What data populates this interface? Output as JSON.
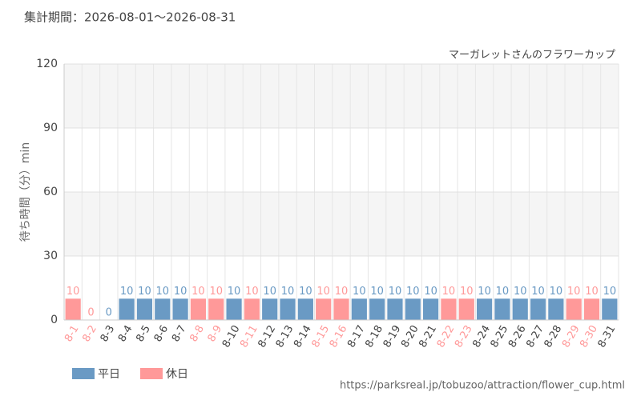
{
  "chart_data": {
    "type": "bar",
    "title": "集計期間：2026-08-01～2026-08-31",
    "subtitle": "マーガレットさんのフラワーカップ",
    "y_label": "待ち時間（分）min",
    "footer": "https://parksreal.jp/tobuzoo/attraction/flower_cup.html",
    "categories": [
      "8-1",
      "8-2",
      "8-3",
      "8-4",
      "8-5",
      "8-6",
      "8-7",
      "8-8",
      "8-9",
      "8-10",
      "8-11",
      "8-12",
      "8-13",
      "8-14",
      "8-15",
      "8-16",
      "8-17",
      "8-18",
      "8-19",
      "8-20",
      "8-21",
      "8-22",
      "8-23",
      "8-24",
      "8-25",
      "8-26",
      "8-27",
      "8-28",
      "8-29",
      "8-30",
      "8-31"
    ],
    "series": [
      {
        "name": "平日",
        "color": "#6a9ac4",
        "values": [
          null,
          null,
          0,
          10,
          10,
          10,
          10,
          null,
          null,
          10,
          null,
          10,
          10,
          10,
          null,
          null,
          10,
          10,
          10,
          10,
          10,
          null,
          null,
          10,
          10,
          10,
          10,
          10,
          null,
          null,
          10
        ]
      },
      {
        "name": "休日",
        "color": "#ff9999",
        "values": [
          10,
          0,
          null,
          null,
          null,
          null,
          null,
          10,
          10,
          null,
          10,
          null,
          null,
          null,
          10,
          10,
          null,
          null,
          null,
          null,
          null,
          10,
          10,
          null,
          null,
          null,
          null,
          null,
          10,
          10,
          null
        ]
      }
    ],
    "ylim": [
      0,
      120
    ],
    "yticks": [
      0,
      30,
      60,
      90,
      120
    ],
    "grid": true
  }
}
